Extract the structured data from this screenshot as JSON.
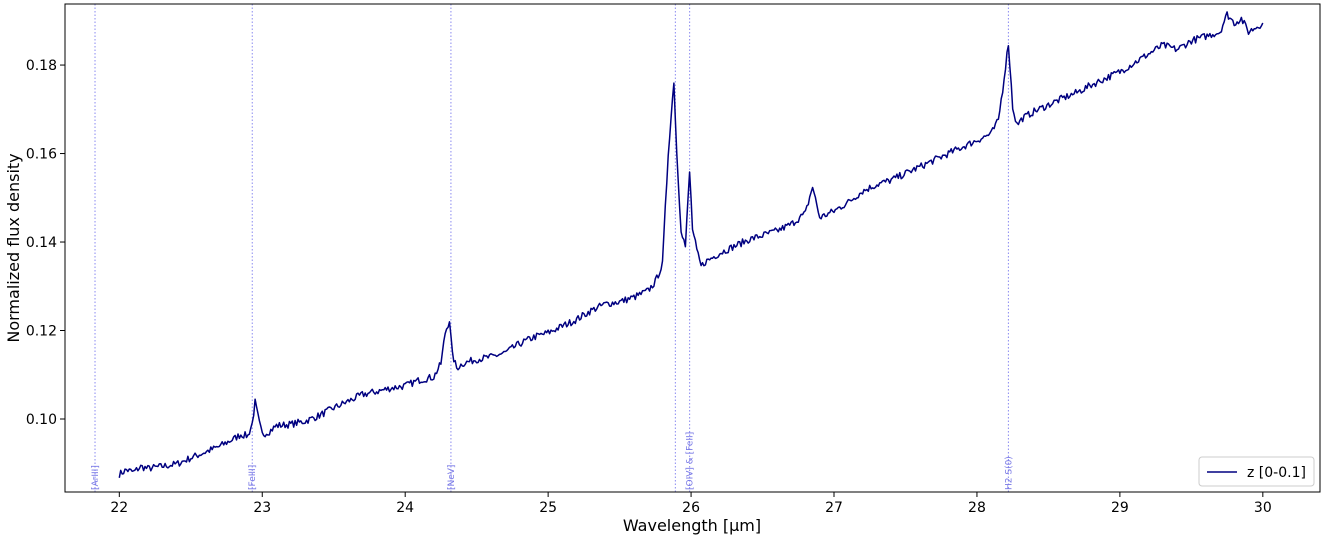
{
  "chart_data": {
    "type": "line",
    "xlabel": "Wavelength [μm]",
    "ylabel": "Normalized flux density",
    "xlim": [
      21.62,
      30.4
    ],
    "ylim": [
      0.0835,
      0.1938
    ],
    "xticks": [
      22,
      23,
      24,
      25,
      26,
      27,
      28,
      29,
      30
    ],
    "yticks": [
      0.1,
      0.12,
      0.14,
      0.16,
      0.18
    ],
    "xtick_labels": [
      "22",
      "23",
      "24",
      "25",
      "26",
      "27",
      "28",
      "29",
      "30"
    ],
    "ytick_labels": [
      "0.10",
      "0.12",
      "0.14",
      "0.16",
      "0.18"
    ],
    "grid": false,
    "legend_position": "lower-right",
    "colors": {
      "series": "#000080",
      "lines": "#8a8af0",
      "label": "#7878e6"
    },
    "series": [
      {
        "name": "z [0-0.1]",
        "x": [
          22.0,
          22.05,
          22.1,
          22.15,
          22.2,
          22.3,
          22.4,
          22.5,
          22.6,
          22.7,
          22.8,
          22.85,
          22.9,
          22.93,
          22.95,
          22.98,
          23.0,
          23.05,
          23.1,
          23.2,
          23.3,
          23.4,
          23.5,
          23.6,
          23.7,
          23.8,
          23.9,
          24.0,
          24.1,
          24.2,
          24.25,
          24.28,
          24.31,
          24.33,
          24.36,
          24.4,
          24.5,
          24.6,
          24.7,
          24.8,
          24.9,
          25.0,
          25.1,
          25.2,
          25.3,
          25.4,
          25.5,
          25.6,
          25.7,
          25.75,
          25.8,
          25.84,
          25.88,
          25.9,
          25.93,
          25.96,
          25.99,
          26.01,
          26.04,
          26.07,
          26.1,
          26.2,
          26.3,
          26.4,
          26.5,
          26.6,
          26.7,
          26.8,
          26.85,
          26.9,
          27.0,
          27.1,
          27.2,
          27.3,
          27.4,
          27.5,
          27.6,
          27.7,
          27.8,
          27.9,
          28.0,
          28.1,
          28.15,
          28.18,
          28.22,
          28.25,
          28.28,
          28.32,
          28.4,
          28.5,
          28.6,
          28.7,
          28.8,
          28.9,
          29.0,
          29.1,
          29.2,
          29.3,
          29.4,
          29.5,
          29.6,
          29.7,
          29.75,
          29.8,
          29.85,
          29.9,
          29.95,
          30.0
        ],
        "values": [
          0.0875,
          0.0885,
          0.088,
          0.0892,
          0.0888,
          0.0893,
          0.0898,
          0.0912,
          0.0925,
          0.0938,
          0.0955,
          0.0965,
          0.0962,
          0.099,
          0.1038,
          0.099,
          0.0965,
          0.0972,
          0.0985,
          0.0988,
          0.0995,
          0.1008,
          0.1025,
          0.104,
          0.1055,
          0.1062,
          0.107,
          0.1075,
          0.1088,
          0.1095,
          0.1125,
          0.1195,
          0.1224,
          0.1145,
          0.1115,
          0.1125,
          0.1135,
          0.114,
          0.115,
          0.117,
          0.1185,
          0.1195,
          0.121,
          0.1225,
          0.1245,
          0.126,
          0.1265,
          0.1275,
          0.129,
          0.131,
          0.135,
          0.16,
          0.1765,
          0.16,
          0.143,
          0.139,
          0.1558,
          0.143,
          0.138,
          0.1345,
          0.1355,
          0.1375,
          0.139,
          0.1405,
          0.1415,
          0.1425,
          0.144,
          0.1465,
          0.1525,
          0.1455,
          0.147,
          0.149,
          0.1515,
          0.153,
          0.154,
          0.1555,
          0.157,
          0.1585,
          0.16,
          0.1615,
          0.163,
          0.1645,
          0.1675,
          0.1745,
          0.185,
          0.1705,
          0.1665,
          0.168,
          0.1695,
          0.171,
          0.1725,
          0.1738,
          0.1755,
          0.177,
          0.1785,
          0.1805,
          0.1825,
          0.1845,
          0.1835,
          0.1855,
          0.1865,
          0.1875,
          0.1915,
          0.1895,
          0.1905,
          0.1875,
          0.1885,
          0.1895
        ]
      }
    ],
    "vertical_lines": [
      {
        "x": 21.83,
        "label": "[ArIII]"
      },
      {
        "x": 22.93,
        "label": "[FeIII]"
      },
      {
        "x": 24.32,
        "label": "[NeV]"
      },
      {
        "x": 25.89,
        "label": ""
      },
      {
        "x": 25.99,
        "label": "[OIV] & [FeII]"
      },
      {
        "x": 28.22,
        "label": "H2 S(0)"
      }
    ]
  }
}
